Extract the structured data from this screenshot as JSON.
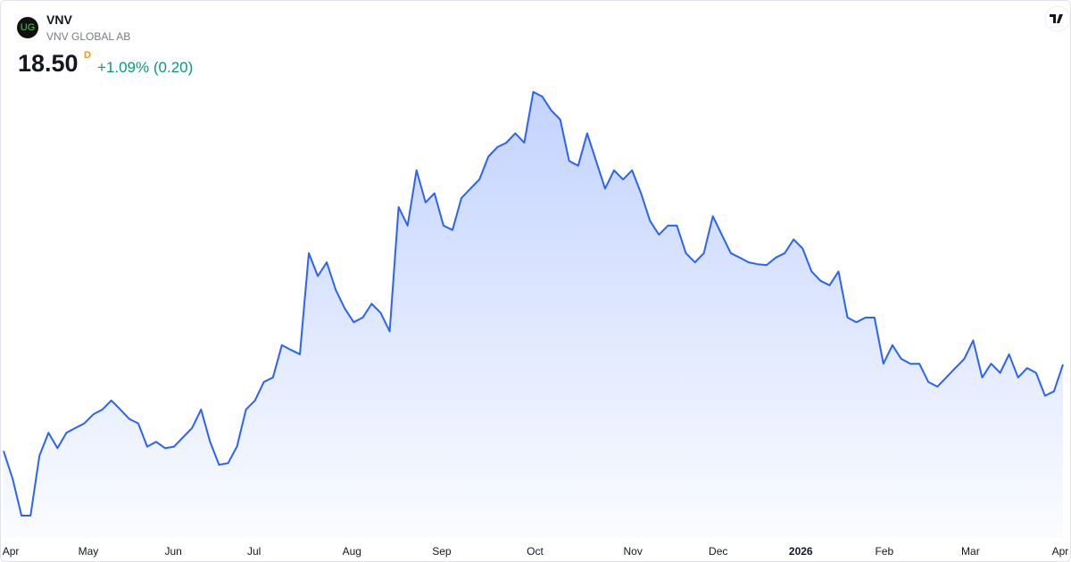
{
  "header": {
    "logo": "UG",
    "symbol": "VNV",
    "name": "VNV GLOBAL AB",
    "price": "18.50",
    "interval": "D",
    "change": "+1.09% (0.20)"
  },
  "chart_data": {
    "type": "area",
    "color": "#2962ff",
    "values": [
      15.37,
      14.37,
      13.03,
      13.03,
      15.2,
      16.03,
      15.47,
      16.03,
      16.2,
      16.37,
      16.7,
      16.87,
      17.2,
      16.87,
      16.53,
      16.37,
      15.53,
      15.7,
      15.47,
      15.53,
      15.87,
      16.2,
      16.87,
      15.7,
      14.87,
      14.93,
      15.53,
      16.87,
      17.2,
      17.87,
      18.03,
      19.2,
      19.03,
      18.87,
      22.53,
      21.7,
      22.2,
      21.2,
      20.53,
      20.03,
      20.2,
      20.7,
      20.37,
      19.7,
      24.2,
      23.53,
      25.53,
      24.37,
      24.7,
      23.53,
      23.37,
      24.53,
      24.87,
      25.2,
      26.03,
      26.37,
      26.53,
      26.87,
      26.53,
      28.37,
      28.2,
      27.7,
      27.37,
      25.87,
      25.7,
      26.87,
      25.87,
      24.87,
      25.53,
      25.2,
      25.53,
      24.7,
      23.7,
      23.2,
      23.53,
      23.53,
      22.53,
      22.2,
      22.53,
      23.87,
      23.2,
      22.53,
      22.37,
      22.2,
      22.13,
      22.1,
      22.37,
      22.53,
      23.03,
      22.7,
      21.87,
      21.53,
      21.37,
      21.87,
      20.2,
      20.03,
      20.2,
      20.2,
      18.53,
      19.2,
      18.7,
      18.53,
      18.53,
      17.87,
      17.7,
      18.03,
      18.37,
      18.7,
      19.37,
      18.03,
      18.53,
      18.2,
      18.87,
      18.03,
      18.37,
      18.2,
      17.37,
      17.53,
      18.5
    ],
    "xticks": [
      {
        "value": 0.8,
        "label": "Apr"
      },
      {
        "value": 9.44,
        "label": "May"
      },
      {
        "value": 18.9,
        "label": "Jun"
      },
      {
        "value": 27.9,
        "label": "Jul"
      },
      {
        "value": 38.8,
        "label": "Aug"
      },
      {
        "value": 48.8,
        "label": "Sep"
      },
      {
        "value": 59.2,
        "label": "Oct"
      },
      {
        "value": 70.1,
        "label": "Nov"
      },
      {
        "value": 79.6,
        "label": "Dec"
      },
      {
        "value": 88.8,
        "label": "2026"
      },
      {
        "value": 98.1,
        "label": "Feb"
      },
      {
        "value": 107.7,
        "label": "Mar"
      },
      {
        "value": 117.7,
        "label": "Apr"
      }
    ]
  }
}
